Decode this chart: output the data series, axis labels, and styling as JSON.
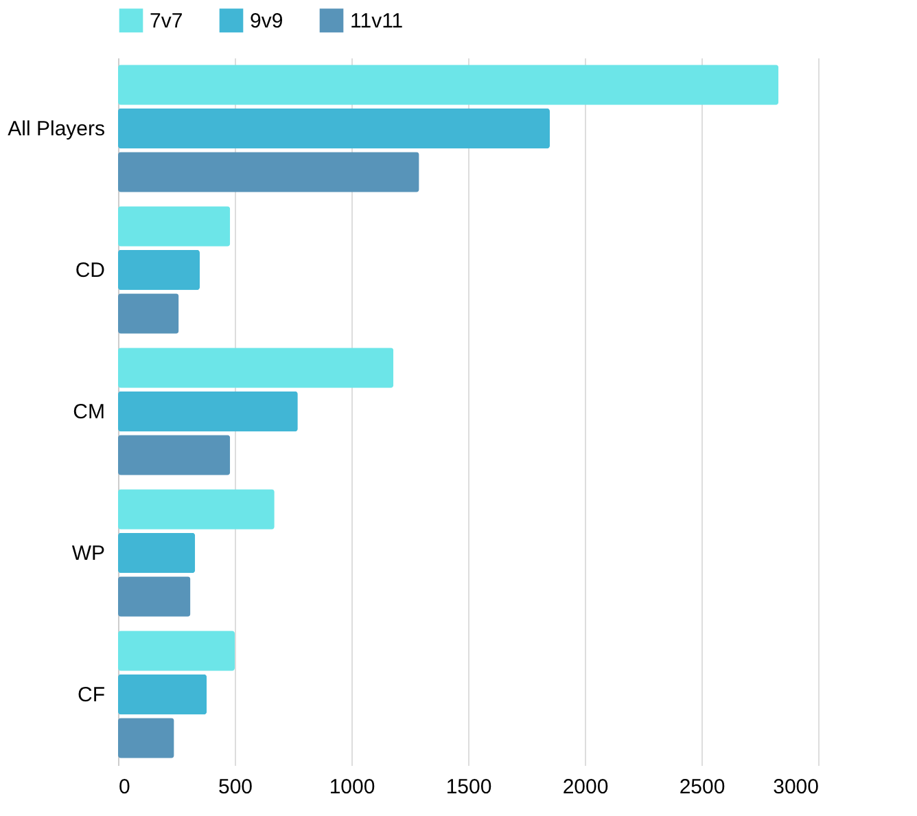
{
  "chart_data": {
    "type": "bar",
    "orientation": "horizontal",
    "categories": [
      "All Players",
      "CD",
      "CM",
      "WP",
      "CF"
    ],
    "series": [
      {
        "name": "7v7",
        "color": "#6ce5e8",
        "values": [
          2830,
          480,
          1180,
          670,
          500
        ]
      },
      {
        "name": "9v9",
        "color": "#41b6d5",
        "values": [
          1850,
          350,
          770,
          330,
          380
        ]
      },
      {
        "name": "11v11",
        "color": "#5894b9",
        "values": [
          1290,
          260,
          480,
          310,
          240
        ]
      }
    ],
    "xlim": [
      0,
      3000
    ],
    "xticks": [
      0,
      500,
      1000,
      1500,
      2000,
      2500,
      3000
    ],
    "grid": "x",
    "legend": "top"
  }
}
